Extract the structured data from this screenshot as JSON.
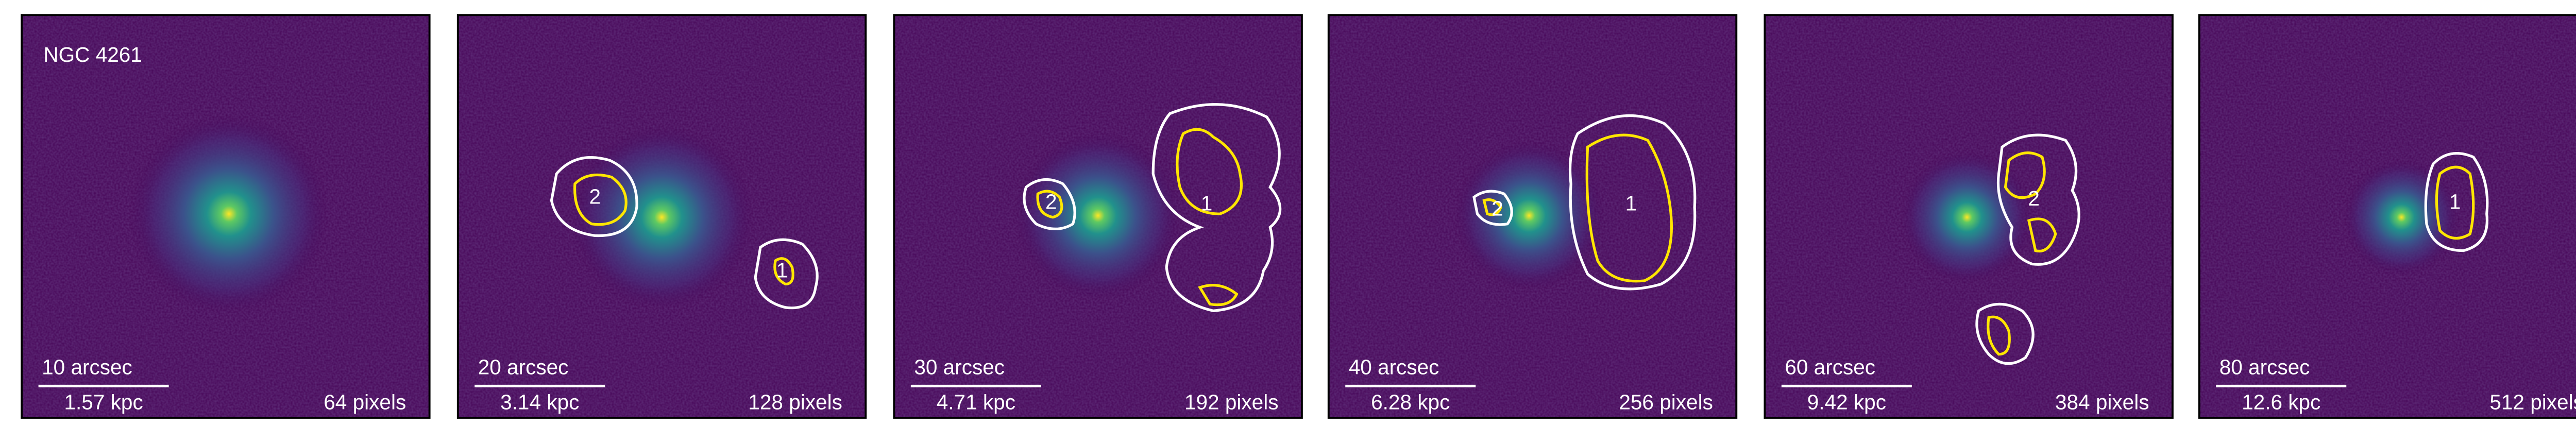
{
  "title": "NGC 4261",
  "panels": [
    {
      "arcsec": "10 arcsec",
      "kpc": "1.57 kpc",
      "pixels": "64 pixels",
      "regions": []
    },
    {
      "arcsec": "20 arcsec",
      "kpc": "3.14 kpc",
      "pixels": "128 pixels",
      "regions": [
        "2",
        "1"
      ]
    },
    {
      "arcsec": "30 arcsec",
      "kpc": "4.71 kpc",
      "pixels": "192 pixels",
      "regions": [
        "2",
        "1"
      ]
    },
    {
      "arcsec": "40 arcsec",
      "kpc": "6.28 kpc",
      "pixels": "256 pixels",
      "regions": [
        "2",
        "1"
      ]
    },
    {
      "arcsec": "60 arcsec",
      "kpc": "9.42 kpc",
      "pixels": "384 pixels",
      "regions": [
        "2"
      ]
    },
    {
      "arcsec": "80 arcsec",
      "kpc": "12.6 kpc",
      "pixels": "512 pixels",
      "regions": [
        "1"
      ]
    }
  ]
}
